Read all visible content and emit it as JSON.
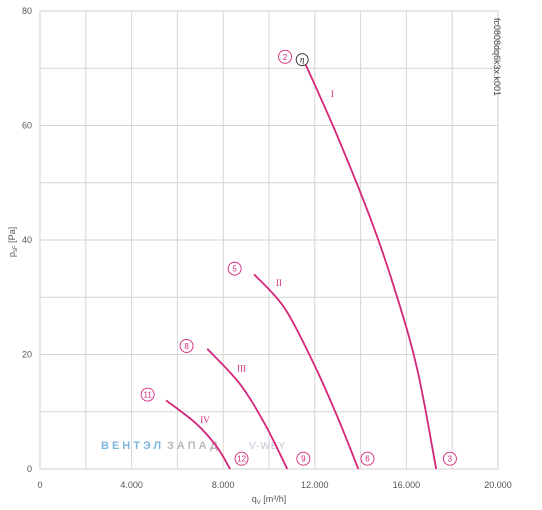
{
  "chart_data": {
    "type": "line",
    "xlabel": "q",
    "xlabel_sub": "V",
    "xlabel_unit": " [m³/h]",
    "ylabel": "p",
    "ylabel_sub": "sF",
    "ylabel_unit": " [Pa]",
    "xlim": [
      0,
      20000
    ],
    "ylim": [
      0,
      80
    ],
    "xticks": [
      0,
      4000,
      8000,
      12000,
      16000,
      20000
    ],
    "xtick_labels": [
      "0",
      "4.000",
      "8.000",
      "12.000",
      "16.000",
      "20.000"
    ],
    "yticks": [
      0,
      20,
      40,
      60,
      80
    ],
    "ytick_labels": [
      "0",
      "20",
      "40",
      "60",
      "80"
    ],
    "xgrid_step": 2000,
    "ygrid_step": 10,
    "grid": true,
    "line_color": "#d4267a",
    "series": [
      {
        "name": "I",
        "points": [
          [
            11450,
            72
          ],
          [
            13000,
            58
          ],
          [
            14500,
            43
          ],
          [
            15600,
            30
          ],
          [
            16500,
            17
          ],
          [
            17300,
            0
          ]
        ],
        "label_at": [
          12700,
          65
        ]
      },
      {
        "name": "II",
        "points": [
          [
            9350,
            34
          ],
          [
            10700,
            28
          ],
          [
            12000,
            18
          ],
          [
            13000,
            9
          ],
          [
            13900,
            0
          ]
        ],
        "label_at": [
          10300,
          32
        ]
      },
      {
        "name": "III",
        "points": [
          [
            7300,
            21
          ],
          [
            8700,
            15
          ],
          [
            9800,
            8
          ],
          [
            10800,
            0
          ]
        ],
        "label_at": [
          8600,
          17
        ]
      },
      {
        "name": "IV",
        "points": [
          [
            5500,
            12
          ],
          [
            6800,
            8
          ],
          [
            7700,
            4
          ],
          [
            8300,
            0
          ]
        ],
        "label_at": [
          7000,
          8
        ]
      }
    ],
    "markers": [
      {
        "label": "2",
        "at": [
          10700,
          72
        ]
      },
      {
        "label": "5",
        "at": [
          8500,
          35
        ]
      },
      {
        "label": "8",
        "at": [
          6400,
          21.5
        ]
      },
      {
        "label": "11",
        "at": [
          4700,
          13
        ]
      },
      {
        "label": "3",
        "at": [
          17900,
          1.8
        ]
      },
      {
        "label": "6",
        "at": [
          14300,
          1.8
        ]
      },
      {
        "label": "9",
        "at": [
          11500,
          1.8
        ]
      },
      {
        "label": "12",
        "at": [
          8800,
          1.8
        ]
      }
    ],
    "eta_marker": {
      "label": "η",
      "at": [
        11450,
        71.5
      ]
    }
  },
  "chart_code": "fc0808dq6k3x.k001",
  "watermark": {
    "part1": "ВЕНТЭЛ",
    "part2": "ЗАПАД",
    "part3": "V-WBY"
  }
}
